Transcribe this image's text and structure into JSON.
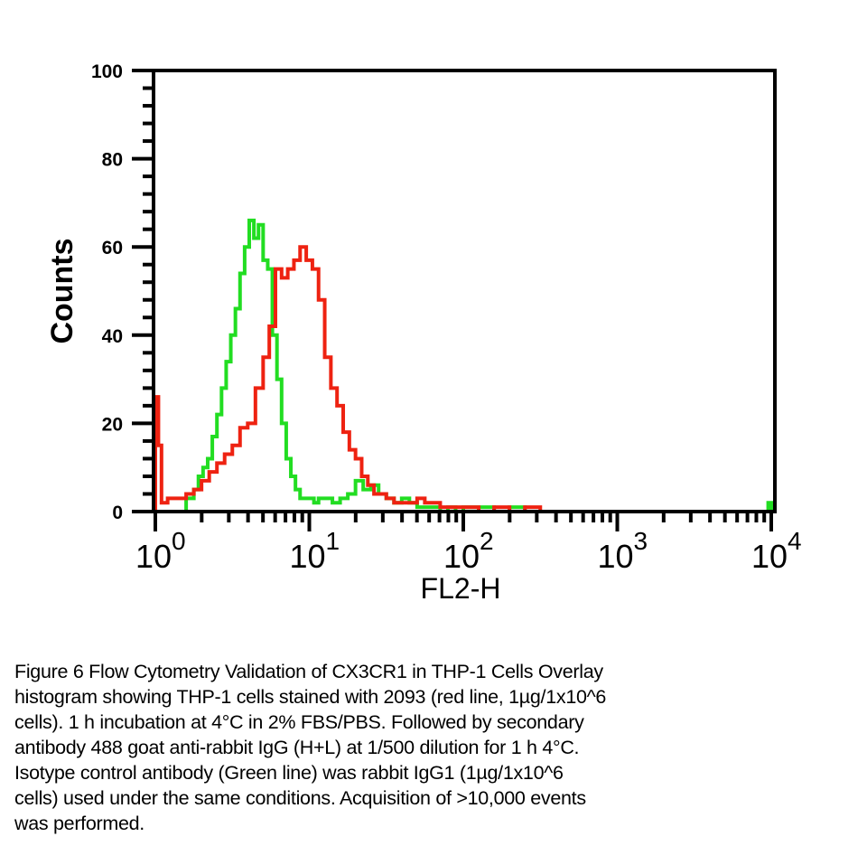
{
  "chart_data": {
    "type": "line",
    "subtype": "step-histogram",
    "title": "",
    "xlabel": "FL2-H",
    "ylabel": "Counts",
    "xscale": "log",
    "xlim": [
      1,
      10000
    ],
    "ylim": [
      0,
      100
    ],
    "grid": false,
    "legend": "none",
    "y_ticks": [
      0,
      20,
      40,
      60,
      80,
      100
    ],
    "y_tick_labels": [
      "0",
      "20",
      "40",
      "60",
      "80",
      "100"
    ],
    "x_ticks": [
      1,
      10,
      100,
      1000,
      10000
    ],
    "x_tick_labels": [
      {
        "base": "10",
        "exp": "0"
      },
      {
        "base": "10",
        "exp": "1"
      },
      {
        "base": "10",
        "exp": "2"
      },
      {
        "base": "10",
        "exp": "3"
      },
      {
        "base": "10",
        "exp": "4"
      }
    ],
    "series": [
      {
        "name": "Isotype control (rabbit IgG1)",
        "color": "#22dd22",
        "x_log10": [
          0.0,
          0.1,
          0.2,
          0.25,
          0.28,
          0.31,
          0.34,
          0.37,
          0.4,
          0.43,
          0.46,
          0.49,
          0.52,
          0.55,
          0.58,
          0.61,
          0.64,
          0.67,
          0.7,
          0.73,
          0.76,
          0.79,
          0.82,
          0.85,
          0.88,
          0.91,
          0.94,
          0.97,
          1.0,
          1.03,
          1.06,
          1.1,
          1.15,
          1.2,
          1.25,
          1.3,
          1.35,
          1.4,
          1.45,
          1.5,
          1.55,
          1.6,
          1.65,
          1.7,
          1.75,
          1.8,
          1.85,
          1.9,
          1.95,
          2.0,
          2.1,
          2.2,
          2.3,
          2.4,
          2.5,
          3.0,
          3.5,
          3.98,
          4.0
        ],
        "values": [
          0,
          0,
          3,
          5,
          8,
          10,
          12,
          17,
          22,
          28,
          34,
          40,
          46,
          54,
          60,
          66,
          62,
          65,
          57,
          55,
          40,
          30,
          20,
          12,
          8,
          5,
          3,
          3,
          3,
          2,
          3,
          3,
          2,
          3,
          4,
          7,
          5,
          6,
          4,
          3,
          2,
          3,
          2,
          1,
          1,
          1,
          0,
          1,
          0,
          1,
          1,
          0,
          1,
          0,
          0,
          0,
          0,
          2,
          0
        ]
      },
      {
        "name": "CX3CR1 (2093)",
        "color": "#ee2211",
        "x_log10": [
          0.0,
          0.02,
          0.04,
          0.08,
          0.12,
          0.16,
          0.2,
          0.25,
          0.3,
          0.35,
          0.4,
          0.45,
          0.5,
          0.55,
          0.6,
          0.65,
          0.7,
          0.74,
          0.78,
          0.82,
          0.86,
          0.9,
          0.94,
          0.98,
          1.02,
          1.06,
          1.1,
          1.14,
          1.18,
          1.22,
          1.26,
          1.3,
          1.34,
          1.38,
          1.42,
          1.46,
          1.5,
          1.55,
          1.6,
          1.65,
          1.7,
          1.75,
          1.8,
          1.85,
          1.9,
          1.95,
          2.0,
          2.1,
          2.2,
          2.3,
          2.4,
          2.5,
          3.0,
          3.5,
          4.0
        ],
        "values": [
          26,
          15,
          2,
          3,
          3,
          3,
          4,
          5,
          7,
          9,
          11,
          13,
          15,
          19,
          20,
          28,
          35,
          42,
          55,
          53,
          55,
          57,
          60,
          57,
          55,
          48,
          35,
          28,
          24,
          18,
          14,
          12,
          8,
          6,
          4,
          4,
          3,
          2,
          2,
          2,
          3,
          2,
          2,
          1,
          1,
          1,
          1,
          0,
          1,
          0,
          1,
          0,
          0,
          0,
          0
        ]
      }
    ]
  },
  "caption": "Figure 6 Flow Cytometry Validation of CX3CR1 in THP-1 Cells Overlay\nhistogram showing THP-1 cells stained with 2093 (red line, 1µg/1x10^6\ncells). 1 h incubation at 4°C in 2% FBS/PBS. Followed by secondary\nantibody 488 goat anti-rabbit IgG (H+L) at 1/500 dilution for 1 h 4°C.\nIsotype control antibody (Green line) was rabbit IgG1 (1µg/1x10^6\ncells) used under the same conditions. Acquisition of >10,000 events\nwas performed."
}
